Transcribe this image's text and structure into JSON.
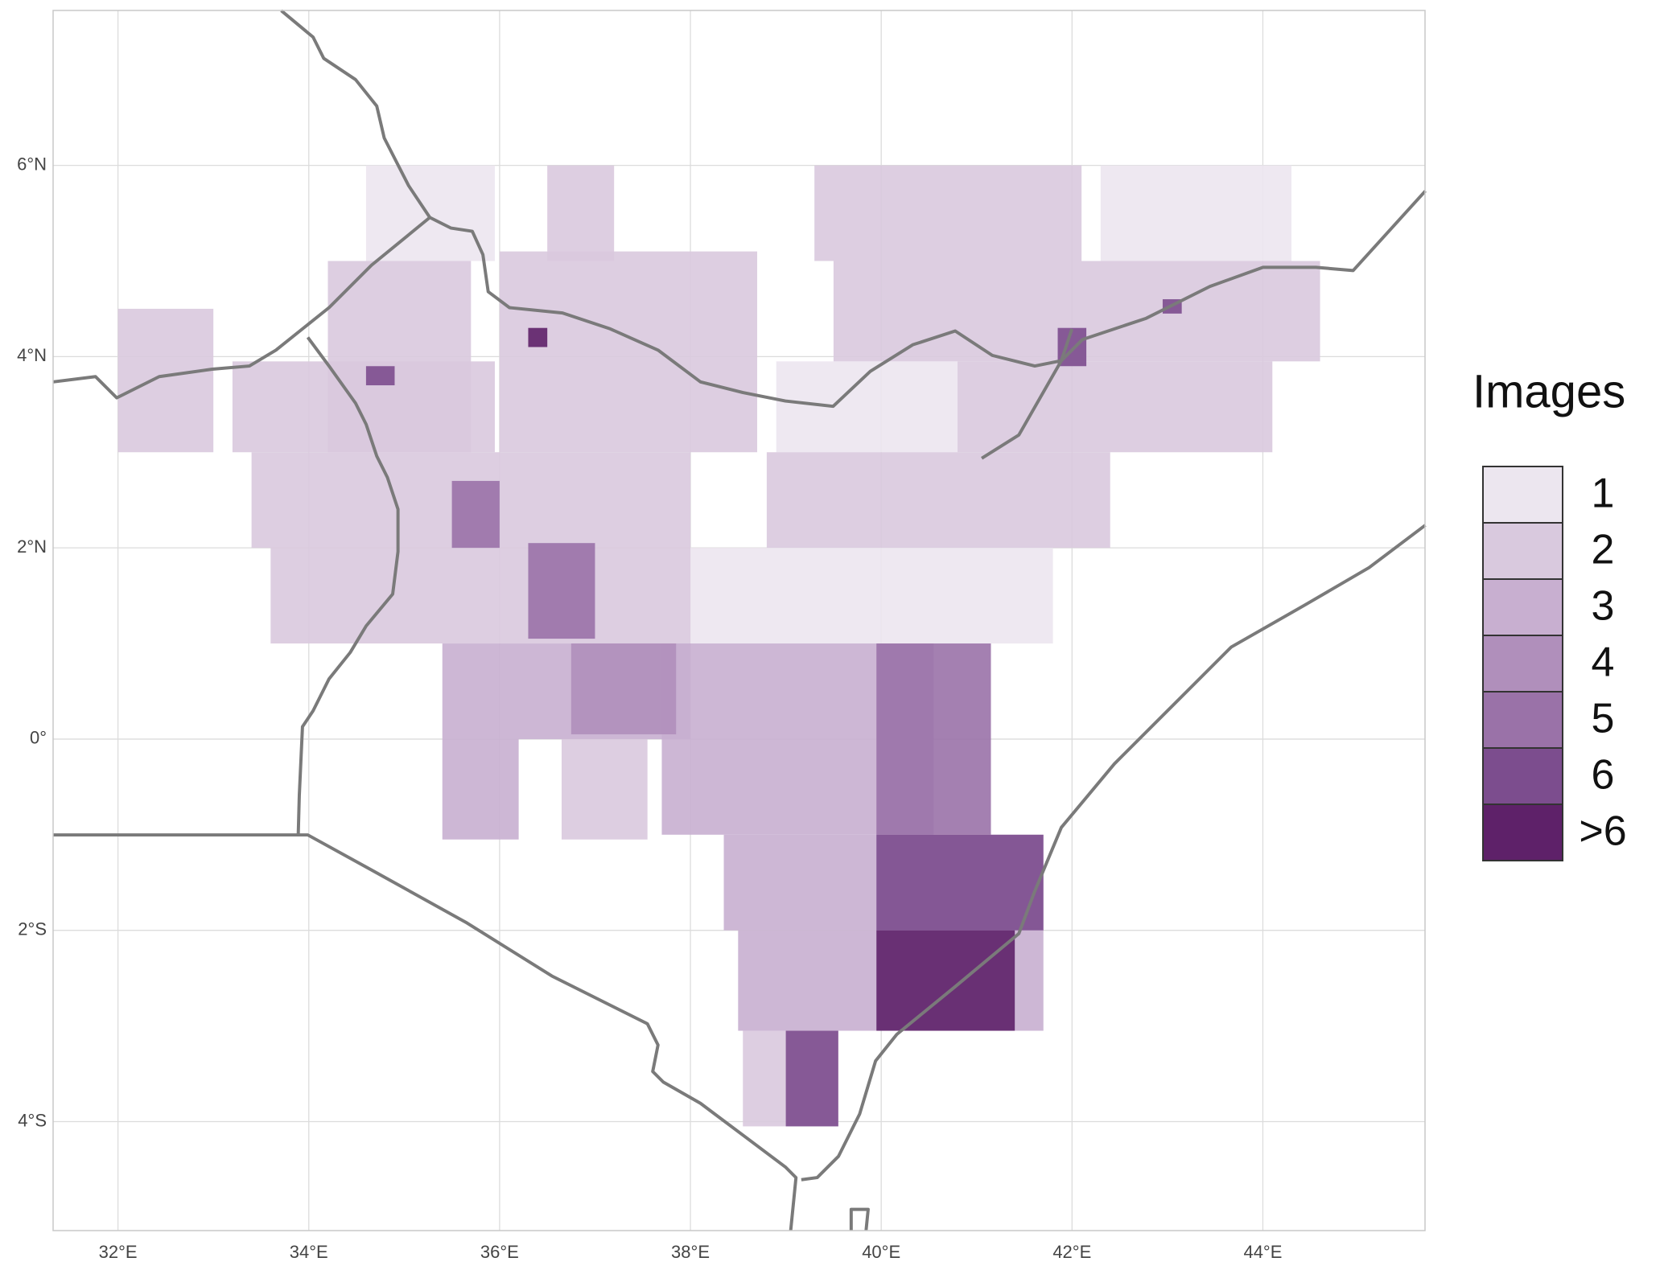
{
  "chart_data": {
    "type": "map",
    "xlim": [
      31.32,
      45.7
    ],
    "ylim": [
      -5.14,
      7.62
    ],
    "xticks": [
      {
        "value": 32,
        "label": "32°E"
      },
      {
        "value": 34,
        "label": "34°E"
      },
      {
        "value": 36,
        "label": "36°E"
      },
      {
        "value": 38,
        "label": "38°E"
      },
      {
        "value": 40,
        "label": "40°E"
      },
      {
        "value": 42,
        "label": "42°E"
      },
      {
        "value": 44,
        "label": "44°E"
      }
    ],
    "yticks": [
      {
        "value": -4,
        "label": "4°S"
      },
      {
        "value": -2,
        "label": "2°S"
      },
      {
        "value": 0,
        "label": "0°"
      },
      {
        "value": 2,
        "label": "2°N"
      },
      {
        "value": 4,
        "label": "4°N"
      },
      {
        "value": 6,
        "label": "6°N"
      }
    ],
    "grid": true,
    "legend": {
      "title": "Images",
      "labels": [
        "1",
        "2",
        "3",
        "4",
        "5",
        "6",
        ">6"
      ],
      "colors": [
        "#ece6ef",
        "#d9c9de",
        "#c8afd0",
        "#b08fbb",
        "#9a72a8",
        "#7c4d8e",
        "#5e2169"
      ]
    },
    "tiles": [
      {
        "lon": [
          32,
          33
        ],
        "lat": [
          3,
          4.5
        ],
        "level": 2
      },
      {
        "lon": [
          34.6,
          35.95
        ],
        "lat": [
          5,
          6
        ],
        "level": 1
      },
      {
        "lon": [
          36.5,
          37.2
        ],
        "lat": [
          5,
          6
        ],
        "level": 2
      },
      {
        "lon": [
          33.2,
          35.95
        ],
        "lat": [
          3,
          3.95
        ],
        "level": 2
      },
      {
        "lon": [
          34.2,
          35.7
        ],
        "lat": [
          3,
          5
        ],
        "level": 2
      },
      {
        "lon": [
          36,
          38.7
        ],
        "lat": [
          3,
          5.1
        ],
        "level": 2
      },
      {
        "lon": [
          38.9,
          40.8
        ],
        "lat": [
          3,
          3.95
        ],
        "level": 1
      },
      {
        "lon": [
          39.3,
          42.1
        ],
        "lat": [
          5,
          6
        ],
        "level": 2
      },
      {
        "lon": [
          42.3,
          44.3
        ],
        "lat": [
          5,
          6
        ],
        "level": 1
      },
      {
        "lon": [
          39.5,
          44.6
        ],
        "lat": [
          3.95,
          5
        ],
        "level": 2
      },
      {
        "lon": [
          40.8,
          44.1
        ],
        "lat": [
          3,
          3.95
        ],
        "level": 2
      },
      {
        "lon": [
          33.4,
          38
        ],
        "lat": [
          2,
          3
        ],
        "level": 2
      },
      {
        "lon": [
          38.8,
          42.4
        ],
        "lat": [
          2,
          3
        ],
        "level": 2
      },
      {
        "lon": [
          33.6,
          38
        ],
        "lat": [
          1,
          2
        ],
        "level": 2
      },
      {
        "lon": [
          38,
          41.8
        ],
        "lat": [
          1,
          2
        ],
        "level": 1
      },
      {
        "lon": [
          35.4,
          38
        ],
        "lat": [
          0,
          1
        ],
        "level": 3
      },
      {
        "lon": [
          35.4,
          36.2
        ],
        "lat": [
          -1.05,
          0
        ],
        "level": 3
      },
      {
        "lon": [
          36.65,
          37.55
        ],
        "lat": [
          -1.05,
          0
        ],
        "level": 2
      },
      {
        "lon": [
          37.7,
          40.55
        ],
        "lat": [
          -1,
          1
        ],
        "level": 3
      },
      {
        "lon": [
          38.35,
          41.7
        ],
        "lat": [
          -2,
          -1
        ],
        "level": 3
      },
      {
        "lon": [
          38.5,
          41.7
        ],
        "lat": [
          -3.05,
          -2
        ],
        "level": 3
      },
      {
        "lon": [
          38.55,
          39.55
        ],
        "lat": [
          -4.05,
          -3.05
        ],
        "level": 2
      },
      {
        "lon": [
          35.5,
          36
        ],
        "lat": [
          2,
          2.7
        ],
        "level": 5
      },
      {
        "lon": [
          36.3,
          37
        ],
        "lat": [
          1.05,
          2.05
        ],
        "level": 5
      },
      {
        "lon": [
          36.75,
          37.85
        ],
        "lat": [
          0.05,
          1
        ],
        "level": 4
      },
      {
        "lon": [
          39.95,
          41.15
        ],
        "lat": [
          -1,
          1
        ],
        "level": 5
      },
      {
        "lon": [
          39.95,
          41.7
        ],
        "lat": [
          -2,
          -1
        ],
        "level": 6
      },
      {
        "lon": [
          39.95,
          41.4
        ],
        "lat": [
          -3.05,
          -2
        ],
        "level": 7
      },
      {
        "lon": [
          39,
          39.55
        ],
        "lat": [
          -4.05,
          -3.05
        ],
        "level": 6
      },
      {
        "lon": [
          36.3,
          36.5
        ],
        "lat": [
          4.1,
          4.3
        ],
        "level": 7
      },
      {
        "lon": [
          34.6,
          34.9
        ],
        "lat": [
          3.7,
          3.9
        ],
        "level": 6
      },
      {
        "lon": [
          42.95,
          43.15
        ],
        "lat": [
          4.45,
          4.6
        ],
        "level": 6
      },
      {
        "lon": [
          41.85,
          42.15
        ],
        "lat": [
          3.9,
          4.3
        ],
        "level": 6
      }
    ]
  }
}
